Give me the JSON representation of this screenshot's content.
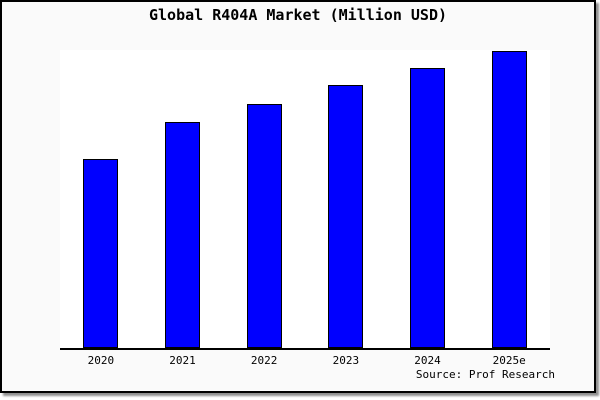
{
  "chart_data": {
    "type": "bar",
    "title": "Global R404A Market (Million USD)",
    "categories": [
      "2020",
      "2021",
      "2022",
      "2023",
      "2024",
      "2025e"
    ],
    "values": [
      63.5,
      75.8,
      81.8,
      88.2,
      93.8,
      99.8
    ],
    "values_unit": "percent of plot height (chart shows no y-axis tick labels; values estimated from bar heights, tallest bar = 2025e)",
    "xlabel": "",
    "ylabel": "",
    "ylim": [
      0,
      100
    ],
    "grid": false,
    "legend": false,
    "bar_color": "#0000FF",
    "bar_border_color": "#000000"
  },
  "source": {
    "text": "Source: Prof Research"
  },
  "colors": {
    "page_background": "#FFFFFF",
    "card_background": "#FAFAFA",
    "plot_background": "#FFFFFF",
    "border": "#000000",
    "text": "#000000",
    "shadow": "#8F8F8F"
  }
}
